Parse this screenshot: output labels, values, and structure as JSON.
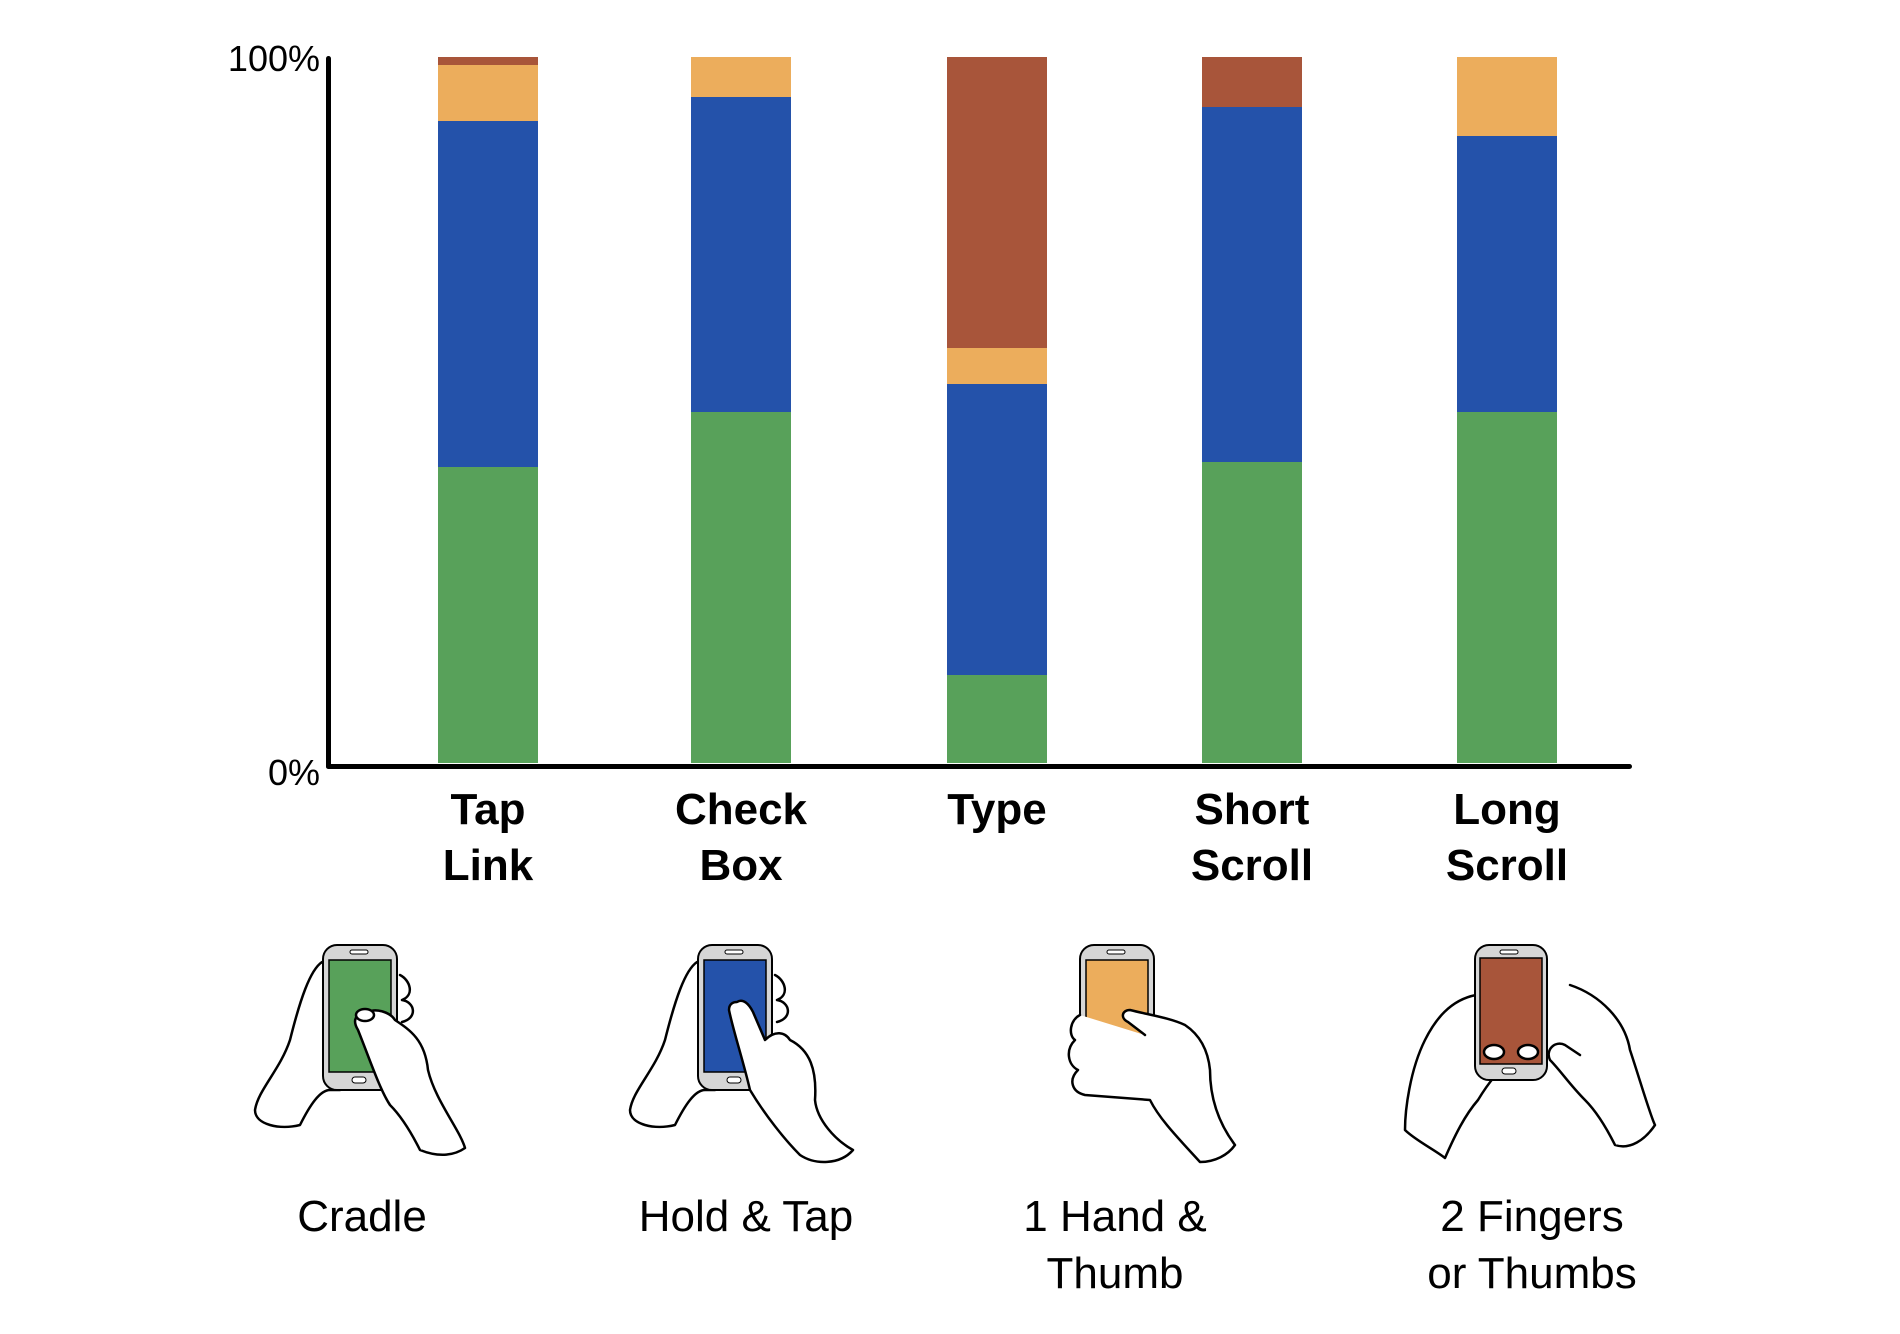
{
  "chart_data": {
    "type": "bar",
    "stacked": true,
    "title": "",
    "xlabel": "",
    "ylabel": "",
    "ylim": [
      0,
      100
    ],
    "yticks": [
      "0%",
      "100%"
    ],
    "categories": [
      "Tap Link",
      "Check Box",
      "Type",
      "Short Scroll",
      "Long Scroll"
    ],
    "category_lines": [
      [
        "Tap",
        "Link"
      ],
      [
        "Check",
        "Box"
      ],
      [
        "Type",
        ""
      ],
      [
        "Short",
        "Scroll"
      ],
      [
        "Long",
        "Scroll"
      ]
    ],
    "series": [
      {
        "name": "Cradle",
        "color": "#58a15a",
        "values": [
          41.9,
          49.7,
          12.5,
          42.6,
          49.7
        ]
      },
      {
        "name": "Hold & Tap",
        "color": "#2452aa",
        "values": [
          49.0,
          44.6,
          41.2,
          50.3,
          39.1
        ]
      },
      {
        "name": "1 Hand & Thumb",
        "color": "#ecad5c",
        "values": [
          7.9,
          5.7,
          5.1,
          0.0,
          11.2
        ]
      },
      {
        "name": "2 Fingers or Thumbs",
        "color": "#a8553a",
        "values": [
          1.1,
          0.0,
          41.2,
          7.1,
          0.0
        ]
      }
    ],
    "grid": false,
    "legend_position": "bottom (illustrated icons)"
  },
  "axis": {
    "y_top_label": "100%",
    "y_bottom_label": "0%"
  },
  "legend": [
    {
      "icon": "cradle-hands-phone-icon",
      "line1": "Cradle",
      "line2": "",
      "color": "#58a15a"
    },
    {
      "icon": "hold-and-tap-hands-phone-icon",
      "line1": "Hold & Tap",
      "line2": "",
      "color": "#2452aa"
    },
    {
      "icon": "one-hand-thumb-phone-icon",
      "line1": "1 Hand &",
      "line2": "Thumb",
      "color": "#ecad5c"
    },
    {
      "icon": "two-thumbs-phone-icon",
      "line1": "2 Fingers",
      "line2": "or Thumbs",
      "color": "#a8553a"
    }
  ]
}
